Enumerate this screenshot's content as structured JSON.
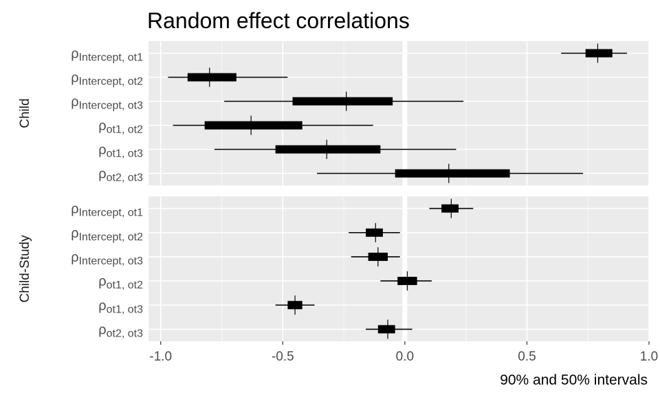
{
  "chart_data": {
    "type": "interval",
    "title": "Random effect correlations",
    "xlabel": "90% and 50% intervals",
    "xlim": [
      -1.05,
      1.0
    ],
    "x_ticks": [
      -1.0,
      -0.5,
      0.0,
      0.5,
      1.0
    ],
    "x_tick_labels": [
      "-1.0",
      "-0.5",
      "0.0",
      "0.5",
      "1.0"
    ],
    "grid": true,
    "reference_line": 0.0,
    "panels": [
      {
        "strip": "Child",
        "rows": [
          {
            "symbol": "ρ",
            "sub": "Intercept, ot1",
            "outer": [
              0.64,
              0.91
            ],
            "inner": [
              0.74,
              0.85
            ],
            "median": 0.79
          },
          {
            "symbol": "ρ",
            "sub": "Intercept, ot2",
            "outer": [
              -0.97,
              -0.48
            ],
            "inner": [
              -0.89,
              -0.69
            ],
            "median": -0.8
          },
          {
            "symbol": "ρ",
            "sub": "Intercept, ot3",
            "outer": [
              -0.74,
              0.24
            ],
            "inner": [
              -0.46,
              -0.05
            ],
            "median": -0.24
          },
          {
            "symbol": "ρ",
            "sub": "ot1, ot2",
            "outer": [
              -0.95,
              -0.13
            ],
            "inner": [
              -0.82,
              -0.42
            ],
            "median": -0.63
          },
          {
            "symbol": "ρ",
            "sub": "ot1, ot3",
            "outer": [
              -0.78,
              0.21
            ],
            "inner": [
              -0.53,
              -0.1
            ],
            "median": -0.32
          },
          {
            "symbol": "ρ",
            "sub": "ot2, ot3",
            "outer": [
              -0.36,
              0.73
            ],
            "inner": [
              -0.04,
              0.43
            ],
            "median": 0.18
          }
        ]
      },
      {
        "strip": "Child-Study",
        "rows": [
          {
            "symbol": "ρ",
            "sub": "Intercept, ot1",
            "outer": [
              0.1,
              0.28
            ],
            "inner": [
              0.15,
              0.22
            ],
            "median": 0.19
          },
          {
            "symbol": "ρ",
            "sub": "Intercept, ot2",
            "outer": [
              -0.23,
              -0.02
            ],
            "inner": [
              -0.16,
              -0.09
            ],
            "median": -0.12
          },
          {
            "symbol": "ρ",
            "sub": "Intercept, ot3",
            "outer": [
              -0.22,
              -0.02
            ],
            "inner": [
              -0.15,
              -0.07
            ],
            "median": -0.11
          },
          {
            "symbol": "ρ",
            "sub": "ot1, ot2",
            "outer": [
              -0.1,
              0.11
            ],
            "inner": [
              -0.03,
              0.05
            ],
            "median": 0.01
          },
          {
            "symbol": "ρ",
            "sub": "ot1, ot3",
            "outer": [
              -0.53,
              -0.37
            ],
            "inner": [
              -0.48,
              -0.42
            ],
            "median": -0.45
          },
          {
            "symbol": "ρ",
            "sub": "ot2, ot3",
            "outer": [
              -0.16,
              0.03
            ],
            "inner": [
              -0.11,
              -0.04
            ],
            "median": -0.07
          }
        ]
      }
    ]
  }
}
